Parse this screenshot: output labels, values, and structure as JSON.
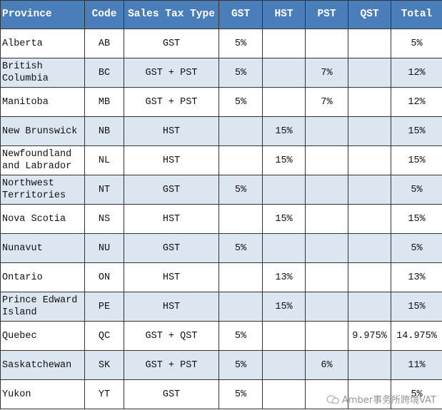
{
  "table": {
    "header": [
      "Province",
      "Code",
      "Sales Tax Type",
      "GST",
      "HST",
      "PST",
      "QST",
      "Total"
    ],
    "rows": [
      [
        "Alberta",
        "AB",
        "GST",
        "5%",
        null,
        null,
        null,
        "5%"
      ],
      [
        "British Columbia",
        "BC",
        "GST + PST",
        "5%",
        null,
        "7%",
        null,
        "12%"
      ],
      [
        "Manitoba",
        "MB",
        "GST + PST",
        "5%",
        null,
        "7%",
        null,
        "12%"
      ],
      [
        "New Brunswick",
        "NB",
        "HST",
        null,
        "15%",
        null,
        null,
        "15%"
      ],
      [
        "Newfoundland and Labrador",
        "NL",
        "HST",
        null,
        "15%",
        null,
        null,
        "15%"
      ],
      [
        "Northwest Territories",
        "NT",
        "GST",
        "5%",
        null,
        null,
        null,
        "5%"
      ],
      [
        "Nova Scotia",
        "NS",
        "HST",
        null,
        "15%",
        null,
        null,
        "15%"
      ],
      [
        "Nunavut",
        "NU",
        "GST",
        "5%",
        null,
        null,
        null,
        "5%"
      ],
      [
        "Ontario",
        "ON",
        "HST",
        null,
        "13%",
        null,
        null,
        "13%"
      ],
      [
        "Prince Edward Island",
        "PE",
        "HST",
        null,
        "15%",
        null,
        null,
        "15%"
      ],
      [
        "Quebec",
        "QC",
        "GST + QST",
        "5%",
        null,
        null,
        "9.975%",
        "14.975%"
      ],
      [
        "Saskatchewan",
        "SK",
        "GST + PST",
        "5%",
        null,
        "6%",
        null,
        "11%"
      ],
      [
        "Yukon",
        "YT",
        "GST",
        "5%",
        null,
        null,
        null,
        "5%"
      ]
    ]
  },
  "watermark": "Amber事务所跨境VAT"
}
